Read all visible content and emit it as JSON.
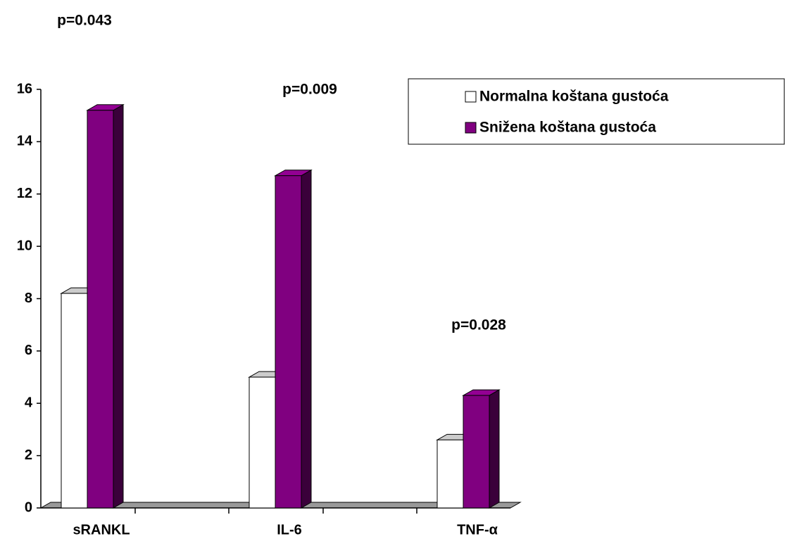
{
  "chart_data": {
    "type": "bar3d",
    "categories": [
      "sRANKL",
      "IL-6",
      "TNF-α"
    ],
    "series": [
      {
        "name": "Normalna koštana gustoća",
        "color": "#ffffff",
        "values": [
          8.2,
          5.0,
          2.6
        ]
      },
      {
        "name": "Snižena koštana gustoća",
        "color": "#800080",
        "values": [
          15.2,
          12.7,
          4.3
        ]
      }
    ],
    "ylim": [
      0,
      16
    ],
    "yticks": [
      0,
      2,
      4,
      6,
      8,
      10,
      12,
      14,
      16
    ],
    "annotations": [
      "p=0.043",
      "p=0.009",
      "p=0.028"
    ],
    "legend_position": "upper right"
  }
}
